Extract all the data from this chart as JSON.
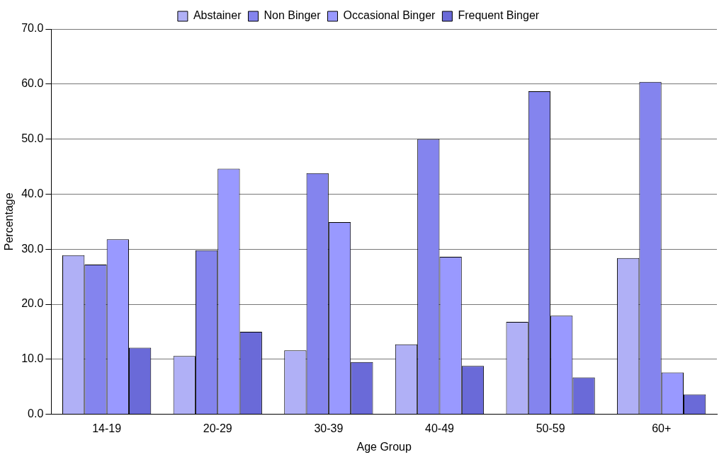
{
  "chart_data": {
    "type": "bar",
    "xlabel": "Age Group",
    "ylabel": "Percentage",
    "categories": [
      "14-19",
      "20-29",
      "30-39",
      "40-49",
      "50-59",
      "60+"
    ],
    "series": [
      {
        "name": "Abstainer",
        "color": "#b0b0f6",
        "values": [
          28.9,
          10.6,
          11.6,
          12.7,
          16.8,
          28.4
        ]
      },
      {
        "name": "Non Binger",
        "color": "#8484ee",
        "values": [
          27.2,
          29.8,
          43.8,
          50.0,
          58.7,
          60.4
        ]
      },
      {
        "name": "Occasional Binger",
        "color": "#9999ff",
        "values": [
          31.8,
          44.6,
          34.9,
          28.6,
          17.9,
          7.6
        ]
      },
      {
        "name": "Frequent Binger",
        "color": "#6a6ad8",
        "values": [
          12.1,
          15.0,
          9.5,
          8.8,
          6.7,
          3.6
        ]
      }
    ],
    "ylim": [
      0,
      70
    ],
    "yticks": [
      {
        "value": 0,
        "label": "0.0"
      },
      {
        "value": 10,
        "label": "10.0"
      },
      {
        "value": 20,
        "label": "20.0"
      },
      {
        "value": 30,
        "label": "30.0"
      },
      {
        "value": 40,
        "label": "40.0"
      },
      {
        "value": 50,
        "label": "50.0"
      },
      {
        "value": 60,
        "label": "60.0"
      },
      {
        "value": 70,
        "label": "70.0"
      }
    ],
    "grid": "y",
    "legend": "top"
  }
}
